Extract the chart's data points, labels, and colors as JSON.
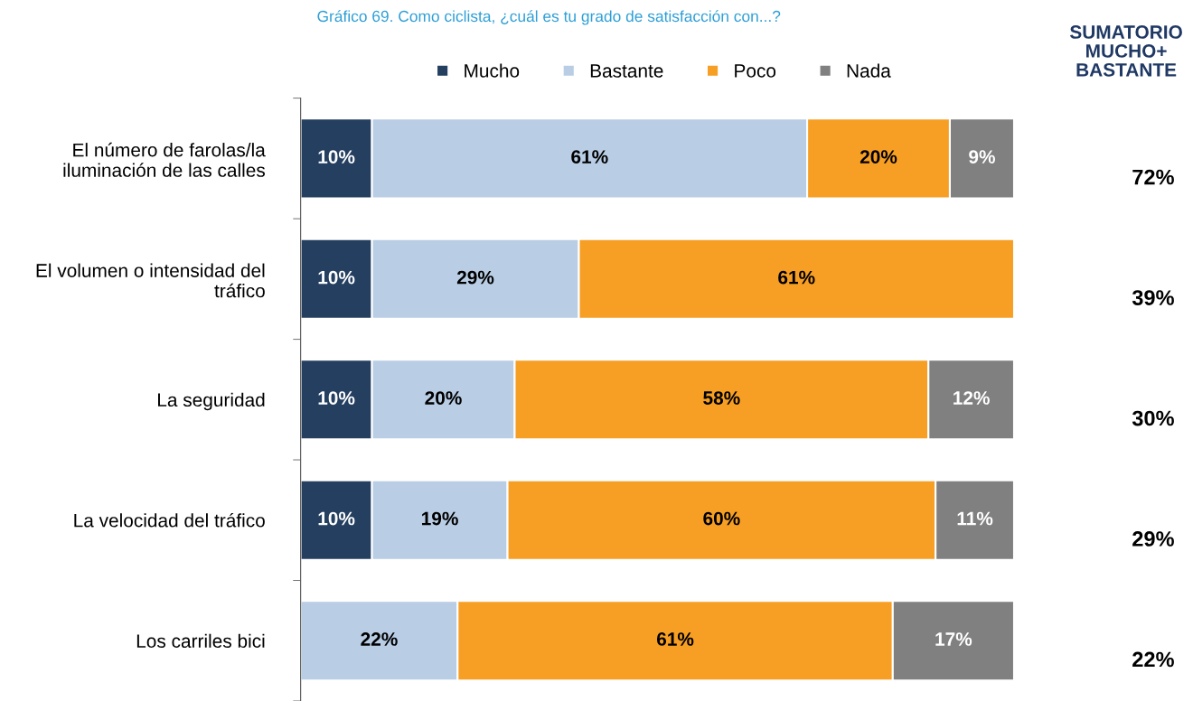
{
  "chart_data": {
    "type": "bar",
    "orientation": "horizontal",
    "stacked": true,
    "title": "Gráfico 69. Como ciclista, ¿cuál es tu grado de satisfacción con...?",
    "categories": [
      "El número de farolas/la\niluminación de las calles",
      "El volumen o intensidad del\ntráfico",
      "La seguridad",
      "La velocidad del tráfico",
      "Los carriles bici"
    ],
    "series": [
      {
        "name": "Mucho",
        "color": "#243f60",
        "values": [
          10,
          10,
          10,
          10,
          null
        ],
        "value_labels": [
          "10%",
          "10%",
          "10%",
          "10%",
          null
        ]
      },
      {
        "name": "Bastante",
        "color": "#b9cde5",
        "values": [
          61,
          29,
          20,
          19,
          22
        ],
        "value_labels": [
          "61%",
          "29%",
          "20%",
          "19%",
          "22%"
        ]
      },
      {
        "name": "Poco",
        "color": "#f79f24",
        "values": [
          20,
          61,
          58,
          60,
          61
        ],
        "value_labels": [
          "20%",
          "61%",
          "58%",
          "60%",
          "61%"
        ]
      },
      {
        "name": "Nada",
        "color": "#808080",
        "values": [
          9,
          null,
          12,
          11,
          17
        ],
        "value_labels": [
          "9%",
          null,
          "12%",
          "11%",
          "17%"
        ]
      }
    ],
    "xlim": [
      0,
      100
    ],
    "tick_labels": "y",
    "grid": false,
    "legend": "top",
    "annotations": [
      "SUMATORIO\nMUCHO+\nBASTANTE",
      "72%",
      "39%",
      "30%",
      "29%",
      "22%"
    ]
  }
}
